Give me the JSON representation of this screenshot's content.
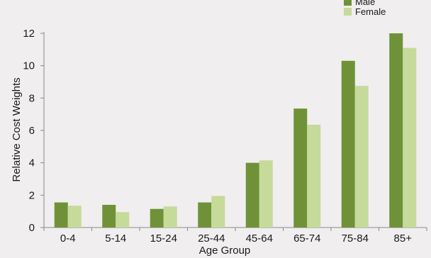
{
  "chart_data": {
    "type": "bar",
    "categories": [
      "0-4",
      "5-14",
      "15-24",
      "25-44",
      "45-64",
      "65-74",
      "75-84",
      "85+"
    ],
    "series": [
      {
        "name": "Male",
        "color": "#6f9238",
        "values": [
          1.55,
          1.4,
          1.15,
          1.55,
          4.0,
          7.35,
          10.3,
          12.0
        ]
      },
      {
        "name": "Female",
        "color": "#c6da9a",
        "values": [
          1.35,
          0.95,
          1.3,
          1.95,
          4.15,
          6.35,
          8.75,
          11.1
        ]
      }
    ],
    "xlabel": "Age Group",
    "ylabel": "Relative Cost Weights",
    "ylim": [
      0,
      12
    ],
    "yticks": [
      0,
      2,
      4,
      6,
      8,
      10,
      12
    ],
    "legend_position": "top-right",
    "grid": false
  }
}
